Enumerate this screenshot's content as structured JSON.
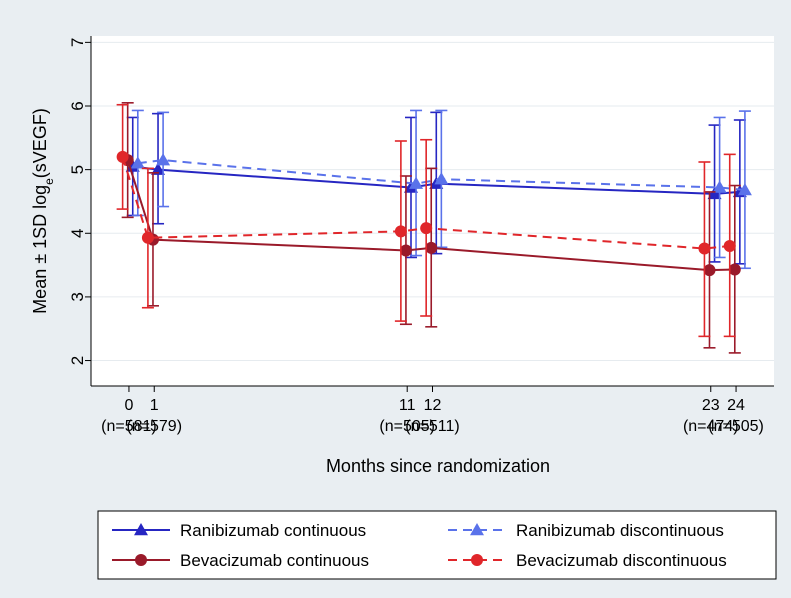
{
  "chart_data": {
    "type": "line",
    "title": "",
    "ylabel_main": "Mean ± 1SD log",
    "ylabel_sub": "e",
    "ylabel_tail": "(sVEGF)",
    "xlabel": "Months since randomization",
    "ylim": [
      1.6,
      7.1
    ],
    "yticks": [
      2,
      3,
      4,
      5,
      6,
      7
    ],
    "xlim": [
      -1.5,
      25.5
    ],
    "xticks": [
      {
        "value": 0,
        "label": "0",
        "n": "(n=581)"
      },
      {
        "value": 1,
        "label": "1",
        "n": "(n=579)"
      },
      {
        "value": 11,
        "label": "11",
        "n": "(n=505)"
      },
      {
        "value": 12,
        "label": "12",
        "n": "(n=511)"
      },
      {
        "value": 23,
        "label": "23",
        "n": "(n=474)"
      },
      {
        "value": 24,
        "label": "24",
        "n": "(n=505)"
      }
    ],
    "grid": true,
    "legend_position": "bottom",
    "series": [
      {
        "name": "Ranibizumab continuous",
        "color": "#2626c2",
        "dash": "solid",
        "marker": "triangle",
        "x": [
          0.15,
          1.15,
          11.15,
          12.15,
          23.15,
          24.15
        ],
        "y": [
          5.05,
          5.0,
          4.72,
          4.78,
          4.62,
          4.65
        ],
        "lower": [
          4.28,
          4.15,
          3.62,
          3.68,
          3.55,
          3.52
        ],
        "upper": [
          5.82,
          5.88,
          5.82,
          5.9,
          5.7,
          5.78
        ]
      },
      {
        "name": "Ranibizumab discontinuous",
        "color": "#5a72ea",
        "dash": "dashed",
        "marker": "triangle",
        "x": [
          0.35,
          1.35,
          11.35,
          12.35,
          23.35,
          24.35
        ],
        "y": [
          5.1,
          5.15,
          4.78,
          4.85,
          4.72,
          4.68
        ],
        "lower": [
          4.28,
          4.42,
          3.65,
          3.78,
          3.62,
          3.45
        ],
        "upper": [
          5.93,
          5.9,
          5.93,
          5.93,
          5.82,
          5.92
        ]
      },
      {
        "name": "Bevacizumab continuous",
        "color": "#9a1a2a",
        "dash": "solid",
        "marker": "circle",
        "x": [
          -0.05,
          0.95,
          10.95,
          11.95,
          22.95,
          23.95
        ],
        "y": [
          5.15,
          3.9,
          3.73,
          3.77,
          3.42,
          3.43
        ],
        "lower": [
          4.25,
          2.86,
          2.57,
          2.53,
          2.2,
          2.12
        ],
        "upper": [
          6.05,
          4.95,
          4.9,
          5.02,
          4.65,
          4.75
        ]
      },
      {
        "name": "Bevacizumab discontinuous",
        "color": "#e0262a",
        "dash": "dashed",
        "marker": "circle",
        "x": [
          -0.25,
          0.75,
          10.75,
          11.75,
          22.75,
          23.75
        ],
        "y": [
          5.2,
          3.93,
          4.03,
          4.08,
          3.76,
          3.8
        ],
        "lower": [
          4.38,
          2.83,
          2.62,
          2.7,
          2.38,
          2.38
        ],
        "upper": [
          6.02,
          5.02,
          5.45,
          5.47,
          5.12,
          5.24
        ]
      }
    ]
  }
}
